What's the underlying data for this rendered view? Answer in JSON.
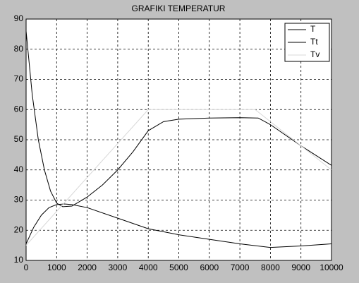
{
  "chart_data": {
    "type": "line",
    "title": "GRAFIKI TEMPERATUR",
    "series": [
      {
        "name": "T",
        "color": "#000000",
        "x": [
          0,
          250,
          500,
          750,
          1000,
          1250,
          1500,
          2000,
          3000,
          4000,
          5000,
          6000,
          7000,
          8000,
          9000,
          10000
        ],
        "values": [
          15.5,
          21,
          25,
          27.5,
          28.5,
          28.7,
          28.5,
          27.5,
          24,
          20.5,
          18.5,
          17,
          15.5,
          14.3,
          14.8,
          15.5
        ]
      },
      {
        "name": "Tt",
        "color": "#000000",
        "x": [
          0,
          200,
          400,
          600,
          800,
          1000,
          1200,
          1500,
          2000,
          2500,
          3000,
          3500,
          4000,
          4500,
          5000,
          6000,
          7000,
          7600,
          8000,
          9000,
          10000
        ],
        "values": [
          86,
          65,
          50,
          40,
          33,
          29,
          27.8,
          28,
          31,
          35,
          40,
          46,
          53,
          56,
          56.8,
          57.2,
          57.3,
          57.2,
          55,
          48,
          41.5
        ]
      },
      {
        "name": "Tv",
        "color": "#d8d8d8",
        "x": [
          0,
          4000,
          7500,
          10000
        ],
        "values": [
          15,
          60,
          60,
          40
        ]
      }
    ],
    "xlim": [
      0,
      10000
    ],
    "xticks": [
      0,
      1000,
      2000,
      3000,
      4000,
      5000,
      6000,
      7000,
      8000,
      9000,
      10000
    ],
    "ylim": [
      10,
      90
    ],
    "yticks": [
      10,
      20,
      30,
      40,
      50,
      60,
      70,
      80,
      90
    ],
    "grid": true,
    "legend": "upper-right"
  }
}
